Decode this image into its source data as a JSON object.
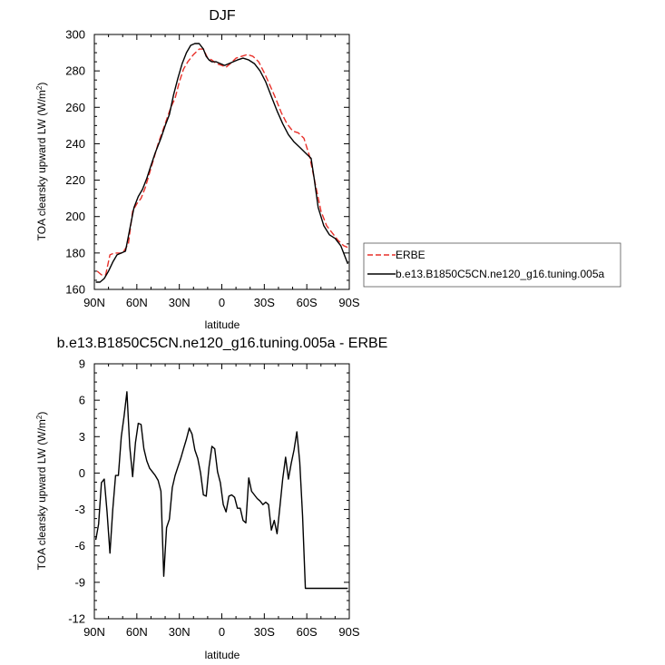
{
  "chart_data": [
    {
      "type": "line",
      "title": "DJF",
      "xlabel": "latitude",
      "ylabel": "TOA clearsky upward LW (W/m",
      "ylabel_sup": "2",
      "ylabel_close": ")",
      "xlim": [
        90,
        -90
      ],
      "ylim": [
        160,
        300
      ],
      "xticks": [
        90,
        60,
        30,
        0,
        -30,
        -60,
        -90
      ],
      "xtick_labels": [
        "90N",
        "60N",
        "30N",
        "0",
        "30S",
        "60S",
        "90S"
      ],
      "yticks": [
        160,
        180,
        200,
        220,
        240,
        260,
        280,
        300
      ],
      "ytick_labels": [
        "160",
        "180",
        "200",
        "220",
        "240",
        "260",
        "280",
        "300"
      ],
      "legend_position": "right",
      "series": [
        {
          "name": "ERBE",
          "style": "dashed",
          "color": "#e8302a",
          "x": [
            88,
            85,
            82,
            79,
            76,
            73,
            70,
            66,
            63,
            60,
            57,
            54,
            51,
            48,
            45,
            40,
            36,
            33,
            30,
            27,
            24,
            20,
            16,
            13,
            10,
            7,
            4,
            0,
            -3,
            -6,
            -10,
            -14,
            -18,
            -22,
            -26,
            -30,
            -34,
            -38,
            -42,
            -46,
            -50,
            -54,
            -58,
            -62,
            -66,
            -70,
            -74,
            -78,
            -82,
            -86,
            -89
          ],
          "y": [
            170,
            168,
            168,
            179,
            180,
            180,
            180,
            185,
            203,
            207,
            210,
            216,
            224,
            232,
            240,
            251,
            260,
            265,
            274,
            281,
            285,
            289,
            292,
            292,
            287,
            286,
            284,
            283,
            282,
            284,
            287,
            288,
            289,
            288,
            285,
            279,
            272,
            265,
            257,
            251,
            247,
            246,
            243,
            233,
            218,
            203,
            195,
            191,
            187,
            184,
            183
          ]
        },
        {
          "name": "b.e13.B1850C5CN.ne120_g16.tuning.005a",
          "style": "solid",
          "color": "#000000",
          "x": [
            89,
            86,
            83,
            80,
            77,
            74,
            71,
            68,
            65,
            62,
            59,
            56,
            53,
            50,
            47,
            43,
            40,
            37,
            34,
            31,
            28,
            25,
            22,
            19,
            16,
            13,
            11,
            9,
            7,
            4,
            1,
            -2,
            -5,
            -8,
            -11,
            -15,
            -19,
            -23,
            -27,
            -31,
            -35,
            -39,
            -43,
            -47,
            -51,
            -55,
            -59,
            -63,
            -65,
            -68,
            -72,
            -76,
            -80,
            -84,
            -87,
            -89
          ],
          "y": [
            164,
            164,
            166,
            170,
            175,
            179,
            180,
            181,
            193,
            205,
            211,
            215,
            221,
            228,
            235,
            243,
            250,
            256,
            267,
            276,
            284,
            290,
            294,
            295,
            295,
            292,
            288,
            286,
            285,
            285,
            284,
            283,
            284,
            285,
            286,
            287,
            286,
            284,
            280,
            274,
            266,
            258,
            251,
            245,
            241,
            238,
            235,
            232,
            222,
            205,
            195,
            190,
            188,
            184,
            178,
            174
          ]
        }
      ]
    },
    {
      "type": "line",
      "title": "b.e13.B1850C5CN.ne120_g16.tuning.005a - ERBE",
      "xlabel": "latitude",
      "ylabel": "TOA clearsky upward LW (W/m",
      "ylabel_sup": "2",
      "ylabel_close": ")",
      "xlim": [
        90,
        -90
      ],
      "ylim": [
        -12,
        9
      ],
      "xticks": [
        90,
        60,
        30,
        0,
        -30,
        -60,
        -90
      ],
      "xtick_labels": [
        "90N",
        "60N",
        "30N",
        "0",
        "30S",
        "60S",
        "90S"
      ],
      "yticks": [
        -12,
        -9,
        -6,
        -3,
        0,
        3,
        6,
        9
      ],
      "ytick_labels": [
        "-12",
        "-9",
        "-6",
        "-3",
        "0",
        "3",
        "6",
        "9"
      ],
      "series": [
        {
          "name": "",
          "style": "solid",
          "color": "#000000",
          "x": [
            89,
            87,
            85,
            83,
            81,
            79,
            77,
            75,
            73,
            71,
            69,
            67,
            65,
            63,
            61,
            59,
            57,
            55,
            53,
            51,
            49,
            47,
            45,
            43,
            41,
            39,
            37,
            35,
            33,
            31,
            29,
            27,
            25,
            23,
            21,
            19,
            17,
            15,
            13,
            11,
            9,
            7,
            5,
            3,
            1,
            -1,
            -3,
            -5,
            -7,
            -9,
            -11,
            -13,
            -15,
            -17,
            -19,
            -21,
            -23,
            -25,
            -27,
            -29,
            -31,
            -33,
            -35,
            -37,
            -39,
            -41,
            -43,
            -45,
            -47,
            -49,
            -51,
            -53,
            -55,
            -57,
            -59,
            -61,
            -63,
            -65,
            -67,
            -69,
            -71,
            -73,
            -75,
            -77,
            -79,
            -81,
            -83,
            -85,
            -87,
            -89
          ],
          "y": [
            -5.5,
            -4.2,
            -0.8,
            -0.5,
            -3.2,
            -6.6,
            -3.0,
            -0.2,
            -0.2,
            3.0,
            4.7,
            6.7,
            2.2,
            -0.3,
            2.5,
            4.1,
            4.0,
            2.0,
            1.0,
            0.4,
            0.1,
            -0.2,
            -0.6,
            -1.5,
            -8.5,
            -4.5,
            -3.8,
            -1.2,
            -0.2,
            0.5,
            1.2,
            2.0,
            2.8,
            3.7,
            3.2,
            1.9,
            1.2,
            0.0,
            -1.8,
            -1.9,
            0.5,
            2.2,
            2.0,
            0.1,
            -0.8,
            -2.6,
            -3.2,
            -1.9,
            -1.8,
            -2.0,
            -2.9,
            -2.9,
            -3.9,
            -4.1,
            -0.4,
            -1.5,
            -1.8,
            -2.1,
            -2.3,
            -2.6,
            -2.4,
            -2.6,
            -4.7,
            -3.9,
            -5.0,
            -2.8,
            -0.5,
            1.3,
            -0.5,
            0.8,
            1.9,
            3.4,
            0.9,
            -3.5,
            -9.5,
            -9.5,
            -9.5,
            -9.5,
            -9.5,
            -9.5,
            -9.5,
            -9.5,
            -9.5,
            -9.5,
            -9.5,
            -9.5,
            -9.5,
            -9.5,
            -9.5,
            -9.5
          ]
        }
      ]
    }
  ]
}
